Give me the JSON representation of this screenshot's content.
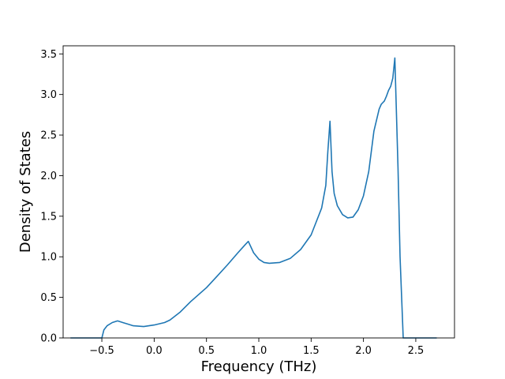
{
  "chart_data": {
    "type": "line",
    "title": "",
    "xlabel": "Frequency (THz)",
    "ylabel": "Density of States",
    "xlim": [
      -0.87,
      2.87
    ],
    "ylim": [
      0.0,
      3.6
    ],
    "xticks": [
      -0.5,
      0.0,
      0.5,
      1.0,
      1.5,
      2.0,
      2.5
    ],
    "xtick_labels": [
      "−0.5",
      "0.0",
      "0.5",
      "1.0",
      "1.5",
      "2.0",
      "2.5"
    ],
    "yticks": [
      0.0,
      0.5,
      1.0,
      1.5,
      2.0,
      2.5,
      3.0,
      3.5
    ],
    "ytick_labels": [
      "0.0",
      "0.5",
      "1.0",
      "1.5",
      "2.0",
      "2.5",
      "3.0",
      "3.5"
    ],
    "grid": false,
    "series": [
      {
        "color": "#1f77b4",
        "x": [
          -0.8,
          -0.5,
          -0.48,
          -0.45,
          -0.4,
          -0.35,
          -0.3,
          -0.25,
          -0.2,
          -0.1,
          0.0,
          0.1,
          0.15,
          0.25,
          0.35,
          0.5,
          0.6,
          0.7,
          0.8,
          0.87,
          0.9,
          0.95,
          1.0,
          1.05,
          1.1,
          1.2,
          1.3,
          1.4,
          1.5,
          1.6,
          1.64,
          1.66,
          1.68,
          1.7,
          1.72,
          1.75,
          1.8,
          1.85,
          1.9,
          1.95,
          2.0,
          2.05,
          2.1,
          2.15,
          2.17,
          2.2,
          2.22,
          2.24,
          2.26,
          2.28,
          2.3,
          2.33,
          2.35,
          2.38,
          2.42,
          2.5,
          2.7
        ],
        "y": [
          0.0,
          0.0,
          0.1,
          0.15,
          0.19,
          0.21,
          0.19,
          0.17,
          0.15,
          0.14,
          0.16,
          0.19,
          0.22,
          0.32,
          0.45,
          0.62,
          0.76,
          0.9,
          1.05,
          1.15,
          1.19,
          1.05,
          0.97,
          0.93,
          0.92,
          0.93,
          0.98,
          1.09,
          1.27,
          1.6,
          1.88,
          2.3,
          2.67,
          2.05,
          1.78,
          1.63,
          1.52,
          1.48,
          1.49,
          1.58,
          1.75,
          2.05,
          2.55,
          2.82,
          2.88,
          2.92,
          2.98,
          3.05,
          3.1,
          3.2,
          3.45,
          2.1,
          1.0,
          0.0,
          0.0,
          0.0,
          0.0
        ]
      }
    ]
  }
}
